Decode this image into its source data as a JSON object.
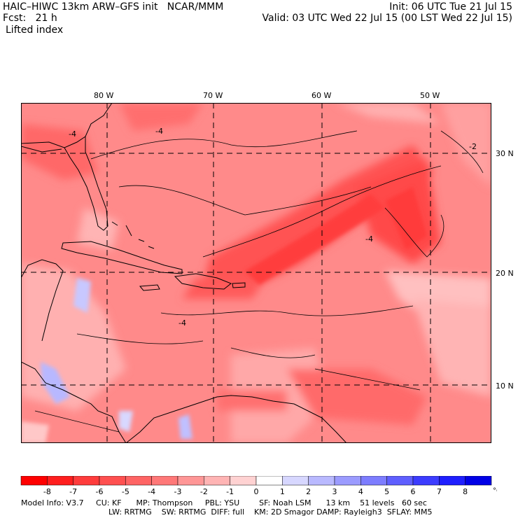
{
  "header": {
    "model_line": "HAIC–HIWC 13km ARW–GFS init   NCAR/MMM",
    "init_line": "Init: 06 UTC Tue 21 Jul 15",
    "fcst_line": "Fcst:   21 h",
    "valid_line": "Valid: 03 UTC Wed 22 Jul 15 (00 LST Wed 22 Jul 15)",
    "field_name": "Lifted index"
  },
  "map": {
    "lon_labels": [
      "80 W",
      "70 W",
      "60 W",
      "50 W"
    ],
    "lat_labels": [
      "30 N",
      "20 N",
      "10 N"
    ],
    "contour_labels": [
      "-4",
      "-4",
      "-4",
      "-4",
      "-2"
    ]
  },
  "colorbar": {
    "ticks": [
      "-8",
      "-7",
      "-6",
      "-5",
      "-4",
      "-3",
      "-2",
      "-1",
      "0",
      "1",
      "2",
      "3",
      "4",
      "5",
      "6",
      "7",
      "8"
    ],
    "unit": "°C",
    "colors": [
      "#ff0000",
      "#ff1e1e",
      "#ff3c3c",
      "#ff5050",
      "#ff6464",
      "#ff7878",
      "#ff9696",
      "#ffb4b4",
      "#ffd2d2",
      "#ffffff",
      "#d7d7ff",
      "#b9b9ff",
      "#9b9bff",
      "#7d7dff",
      "#5f5fff",
      "#3c3cff",
      "#1e1eff",
      "#0000e6"
    ]
  },
  "model_info": {
    "line1": "Model Info: V3.7     CU: KF      MP: Thompson     PBL: YSU        SF: Noah LSM      13 km    51 levels   60 sec",
    "line2": "LW: RRTMG    SW: RRTMG  DIFF: full    KM: 2D Smagor DAMP: Rayleigh3  SFLAY: MM5"
  }
}
